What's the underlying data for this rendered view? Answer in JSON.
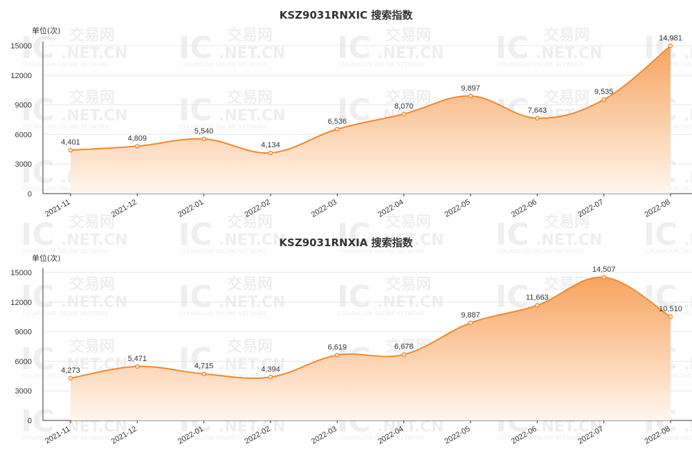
{
  "watermark": {
    "logo": "IC",
    "brand": "交易网",
    "domain": ".NET.CN",
    "tagline": "CHUANGXIN ONLINE NETWORK"
  },
  "style": {
    "line_color": "#f0882e",
    "fill_top": "#f7a45f",
    "fill_bottom": "#fff6ee",
    "grid_color": "#e6e6e6",
    "axis_color": "#333333"
  },
  "chart_data": [
    {
      "type": "area",
      "title": "KSZ9031RNXIC 搜索指数",
      "ylabel": "单位(次)",
      "categories": [
        "2021-11",
        "2021-12",
        "2022-01",
        "2022-02",
        "2022-03",
        "2022-04",
        "2022-05",
        "2022-06",
        "2022-07",
        "2022-08"
      ],
      "values": [
        4401,
        4809,
        5540,
        4134,
        6536,
        8070,
        9897,
        7643,
        9535,
        14981
      ],
      "value_labels": [
        "4,401",
        "4,809",
        "5,540",
        "4,134",
        "6,536",
        "8,070",
        "9,897",
        "7,643",
        "9,535",
        "14,981"
      ],
      "ylim": [
        0,
        15000
      ],
      "yticks": [
        0,
        3000,
        6000,
        9000,
        12000,
        15000
      ],
      "grid": true,
      "smooth": true
    },
    {
      "type": "area",
      "title": "KSZ9031RNXIA 搜索指数",
      "ylabel": "单位(次)",
      "categories": [
        "2021-11",
        "2021-12",
        "2022-01",
        "2022-02",
        "2022-03",
        "2022-04",
        "2022-05",
        "2022-06",
        "2022-07",
        "2022-08"
      ],
      "values": [
        4273,
        5471,
        4715,
        4394,
        6619,
        6678,
        9887,
        11663,
        14507,
        10510
      ],
      "value_labels": [
        "4,273",
        "5,471",
        "4,715",
        "4,394",
        "6,619",
        "6,678",
        "9,887",
        "11,663",
        "14,507",
        "10,510"
      ],
      "ylim": [
        0,
        15000
      ],
      "yticks": [
        0,
        3000,
        6000,
        9000,
        12000,
        15000
      ],
      "grid": true,
      "smooth": true
    }
  ]
}
